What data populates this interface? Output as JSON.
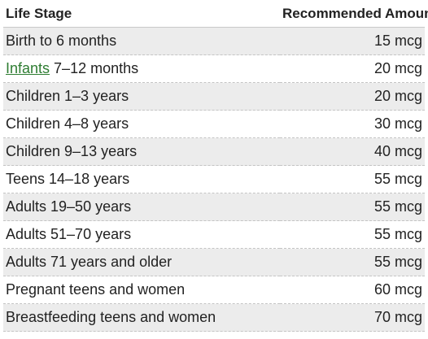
{
  "table": {
    "headers": {
      "stage": "Life Stage",
      "amount": "Recommended Amount"
    },
    "rows": [
      {
        "stage": "Birth to 6 months",
        "amount": "15 mcg"
      },
      {
        "stage_link": "Infants",
        "stage_rest": " 7–12 months",
        "amount": "20 mcg"
      },
      {
        "stage": "Children 1–3 years",
        "amount": "20 mcg"
      },
      {
        "stage": "Children 4–8 years",
        "amount": "30 mcg"
      },
      {
        "stage": "Children 9–13 years",
        "amount": "40 mcg"
      },
      {
        "stage": "Teens 14–18 years",
        "amount": "55 mcg"
      },
      {
        "stage": "Adults 19–50 years",
        "amount": "55 mcg"
      },
      {
        "stage": "Adults 51–70 years",
        "amount": "55 mcg"
      },
      {
        "stage": "Adults 71 years and older",
        "amount": "55 mcg"
      },
      {
        "stage": "Pregnant teens and women",
        "amount": "60 mcg"
      },
      {
        "stage": "Breastfeeding teens and women",
        "amount": "70 mcg"
      }
    ]
  },
  "colors": {
    "link": "#2e7d32",
    "stripe": "#ececec",
    "text": "#222222"
  }
}
